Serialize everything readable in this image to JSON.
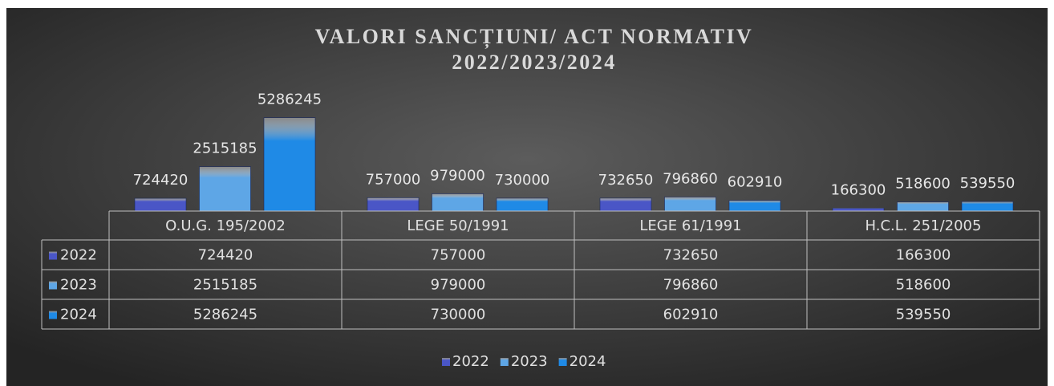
{
  "chart_data": {
    "type": "bar",
    "title": [
      "VALORI SANCȚIUNI/ ACT NORMATIV",
      "2022/2023/2024"
    ],
    "categories": [
      "O.U.G. 195/2002",
      "LEGE 50/1991",
      "LEGE 61/1991",
      "H.C.L. 251/2005"
    ],
    "series": [
      {
        "name": "2022",
        "color": "#4a56c6",
        "values": [
          724420,
          757000,
          732650,
          166300
        ]
      },
      {
        "name": "2023",
        "color": "#5ea6e6",
        "values": [
          2515185,
          979000,
          796860,
          518600
        ]
      },
      {
        "name": "2024",
        "color": "#1f8ae6",
        "values": [
          5286245,
          730000,
          602910,
          539550
        ]
      }
    ],
    "ylim": [
      0,
      6000000
    ],
    "data_table": true,
    "legend": "bottom"
  }
}
